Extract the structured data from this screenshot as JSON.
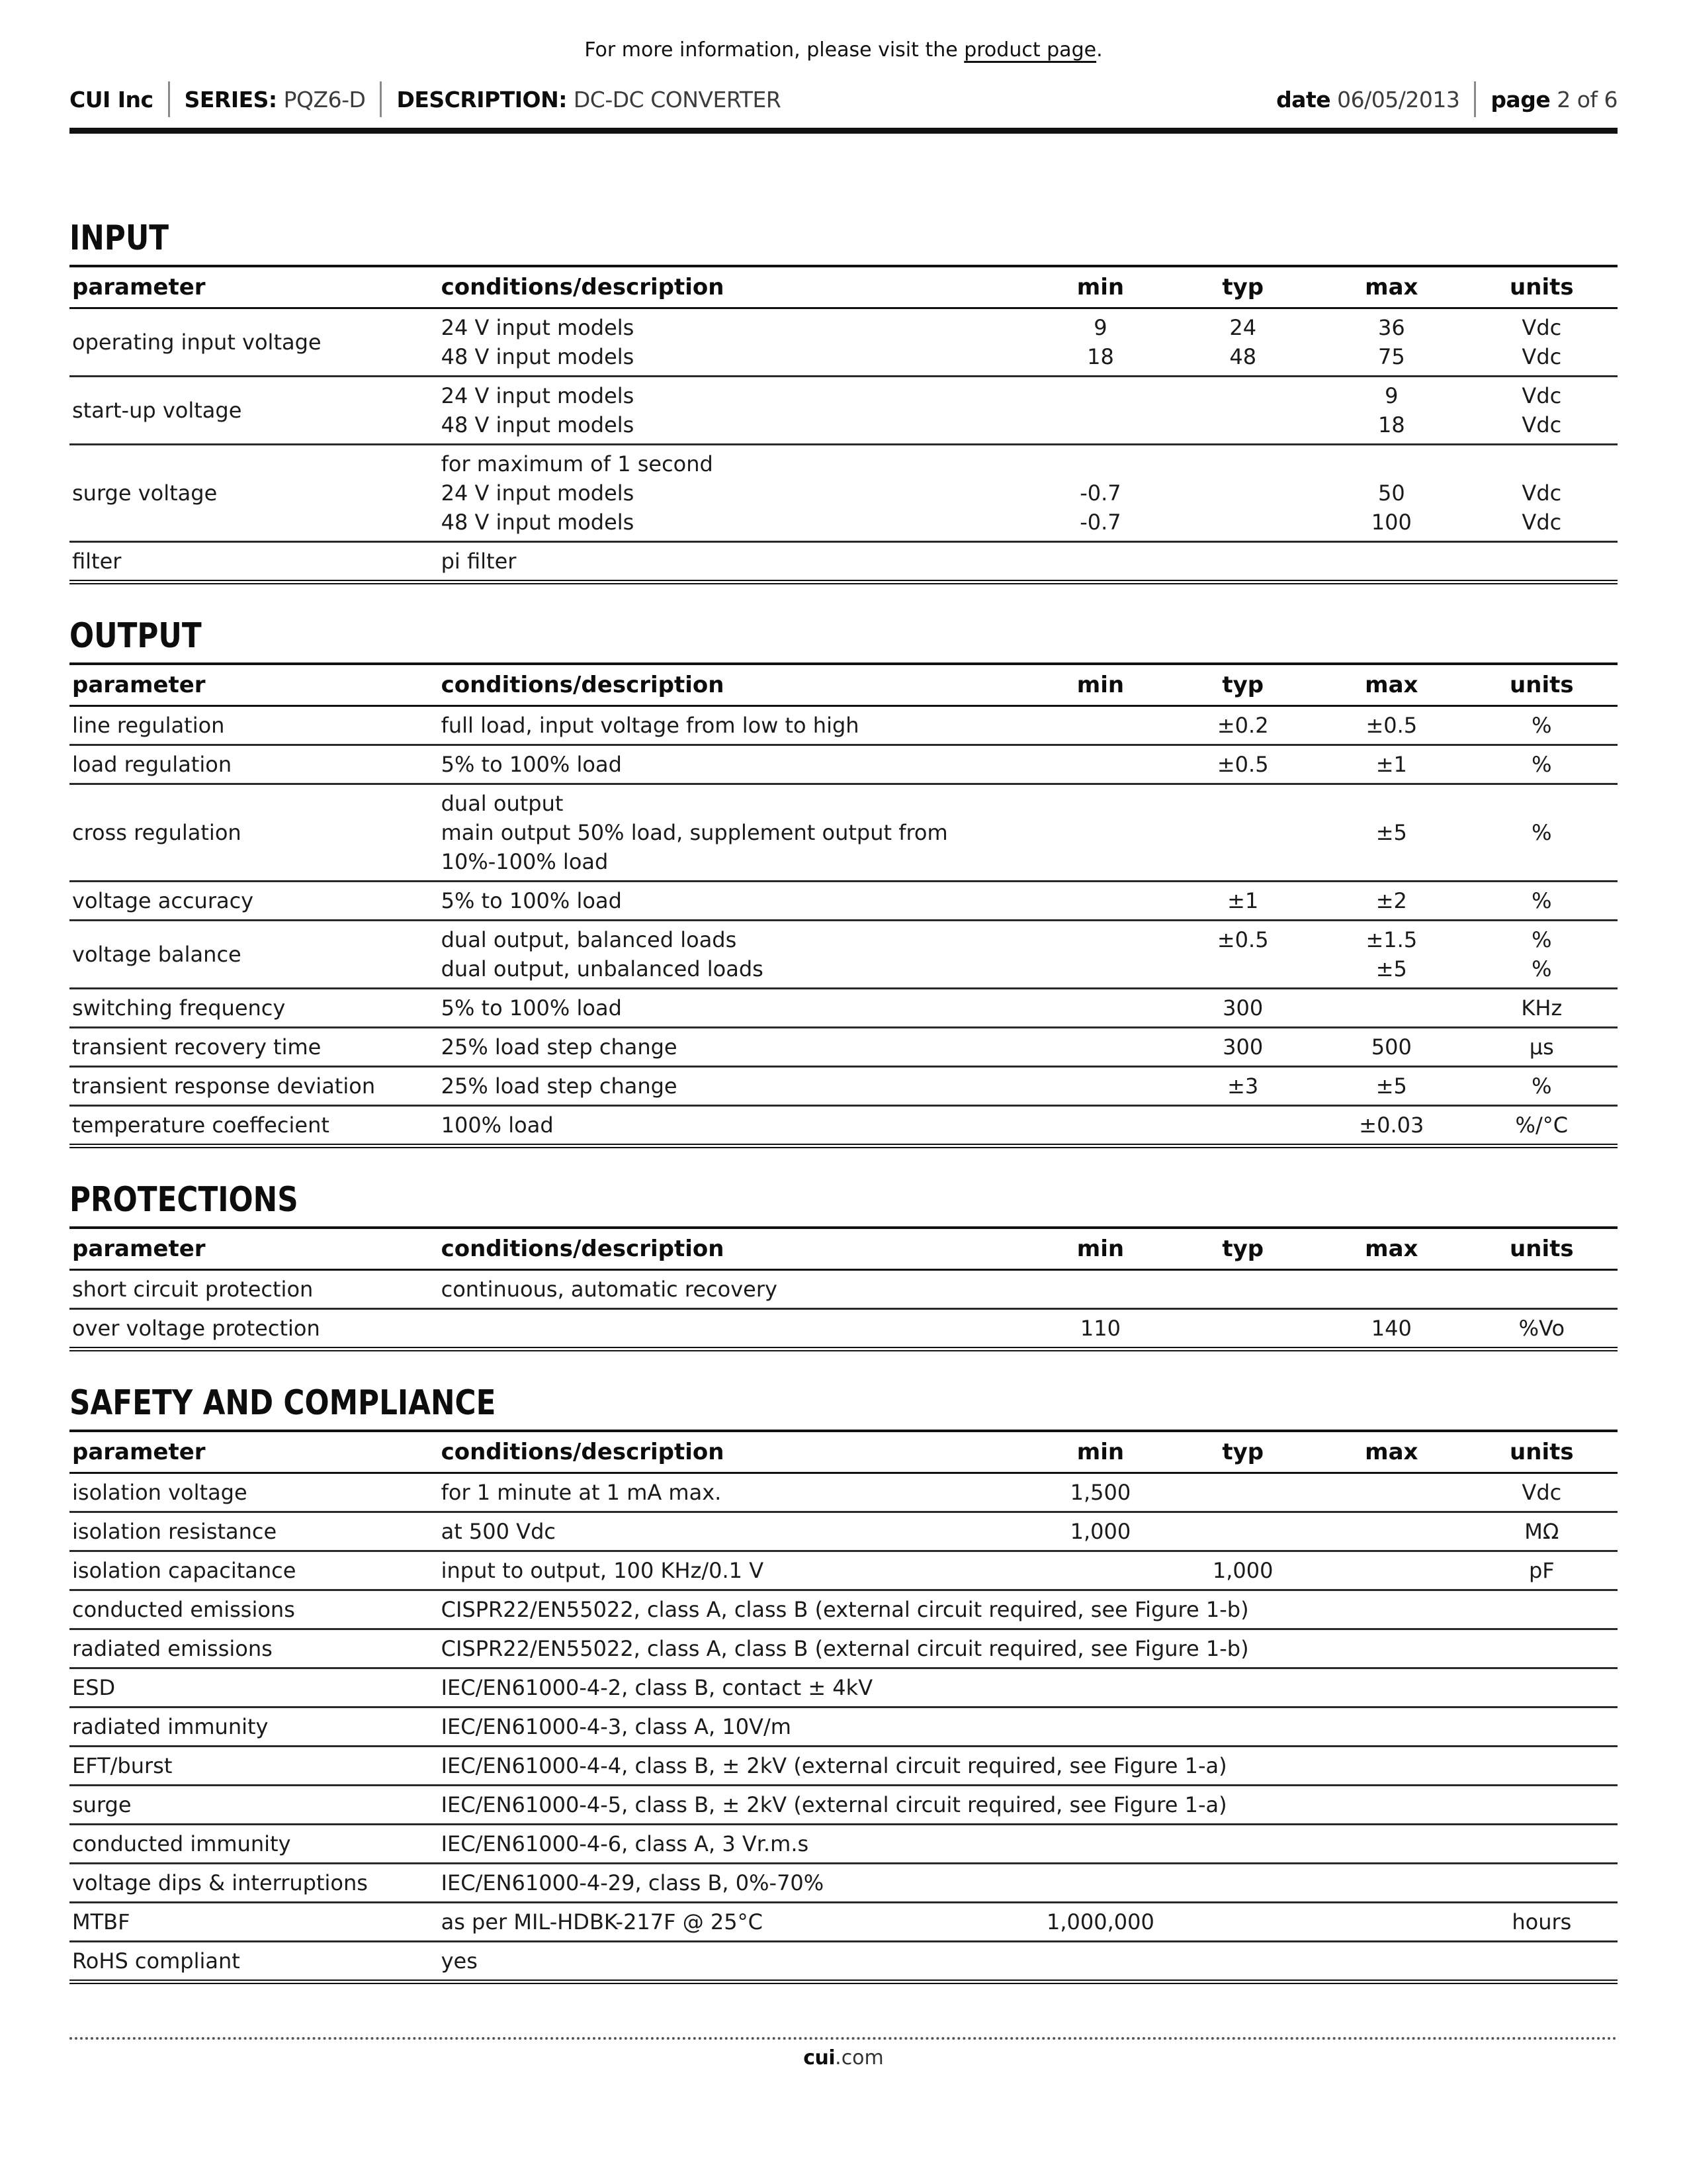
{
  "header": {
    "notice": {
      "pre": "For more information, please visit the ",
      "link": "product page",
      "post": "."
    },
    "company": "CUI Inc",
    "series_label": "SERIES:",
    "series": "PQZ6-D",
    "description_label": "DESCRIPTION:",
    "description": "DC-DC CONVERTER",
    "date_label": "date",
    "date": "06/05/2013",
    "page_label": "page",
    "page": "2 of 6"
  },
  "table_columns": [
    "parameter",
    "conditions/description",
    "min",
    "typ",
    "max",
    "units"
  ],
  "sections": [
    {
      "title": "INPUT",
      "rows": [
        {
          "parameter": "operating input voltage",
          "conditions": [
            "24 V input models",
            "48 V input models"
          ],
          "min": [
            "9",
            "18"
          ],
          "typ": [
            "24",
            "48"
          ],
          "max": [
            "36",
            "75"
          ],
          "units": [
            "Vdc",
            "Vdc"
          ]
        },
        {
          "parameter": "start-up voltage",
          "conditions": [
            "24 V input models",
            "48 V input models"
          ],
          "min": [],
          "typ": [],
          "max": [
            "9",
            "18"
          ],
          "units": [
            "Vdc",
            "Vdc"
          ]
        },
        {
          "parameter": "surge voltage",
          "conditions": [
            "for maximum of 1 second",
            "24 V input models",
            "48 V input models"
          ],
          "min": [
            "",
            "-0.7",
            "-0.7"
          ],
          "typ": [],
          "max": [
            "",
            "50",
            "100"
          ],
          "units": [
            "",
            "Vdc",
            "Vdc"
          ]
        },
        {
          "parameter": "filter",
          "conditions": [
            "pi filter"
          ],
          "min": [],
          "typ": [],
          "max": [],
          "units": []
        }
      ]
    },
    {
      "title": "OUTPUT",
      "rows": [
        {
          "parameter": "line regulation",
          "conditions": [
            "full load, input voltage from low to high"
          ],
          "min": [],
          "typ": [
            "±0.2"
          ],
          "max": [
            "±0.5"
          ],
          "units": [
            "%"
          ]
        },
        {
          "parameter": "load regulation",
          "conditions": [
            "5% to 100% load"
          ],
          "min": [],
          "typ": [
            "±0.5"
          ],
          "max": [
            "±1"
          ],
          "units": [
            "%"
          ]
        },
        {
          "parameter": "cross regulation",
          "conditions": [
            "dual output",
            "main output 50% load, supplement output from",
            "10%-100% load"
          ],
          "min": [],
          "typ": [],
          "max": [
            "",
            "±5",
            ""
          ],
          "units": [
            "",
            "%",
            ""
          ]
        },
        {
          "parameter": "voltage accuracy",
          "conditions": [
            "5% to 100% load"
          ],
          "min": [],
          "typ": [
            "±1"
          ],
          "max": [
            "±2"
          ],
          "units": [
            "%"
          ]
        },
        {
          "parameter": "voltage balance",
          "conditions": [
            "dual output, balanced loads",
            "dual output, unbalanced loads"
          ],
          "min": [],
          "typ": [
            "±0.5",
            ""
          ],
          "max": [
            "±1.5",
            "±5"
          ],
          "units": [
            "%",
            "%"
          ]
        },
        {
          "parameter": "switching frequency",
          "conditions": [
            "5% to 100% load"
          ],
          "min": [],
          "typ": [
            "300"
          ],
          "max": [],
          "units": [
            "KHz"
          ]
        },
        {
          "parameter": "transient recovery time",
          "conditions": [
            "25% load step change"
          ],
          "min": [],
          "typ": [
            "300"
          ],
          "max": [
            "500"
          ],
          "units": [
            "µs"
          ]
        },
        {
          "parameter": "transient response deviation",
          "conditions": [
            "25% load step change"
          ],
          "min": [],
          "typ": [
            "±3"
          ],
          "max": [
            "±5"
          ],
          "units": [
            "%"
          ]
        },
        {
          "parameter": "temperature coeffecient",
          "conditions": [
            "100% load"
          ],
          "min": [],
          "typ": [],
          "max": [
            "±0.03"
          ],
          "units": [
            "%/°C"
          ]
        }
      ]
    },
    {
      "title": "PROTECTIONS",
      "rows": [
        {
          "parameter": "short circuit protection",
          "conditions": [
            "continuous, automatic recovery"
          ],
          "min": [],
          "typ": [],
          "max": [],
          "units": []
        },
        {
          "parameter": "over voltage protection",
          "conditions": [],
          "min": [
            "110"
          ],
          "typ": [],
          "max": [
            "140"
          ],
          "units": [
            "%Vo"
          ]
        }
      ]
    },
    {
      "title": "SAFETY AND COMPLIANCE",
      "rows": [
        {
          "parameter": "isolation voltage",
          "conditions": [
            "for 1 minute at 1 mA max."
          ],
          "min": [
            "1,500"
          ],
          "typ": [],
          "max": [],
          "units": [
            "Vdc"
          ]
        },
        {
          "parameter": "isolation resistance",
          "conditions": [
            "at 500 Vdc"
          ],
          "min": [
            "1,000"
          ],
          "typ": [],
          "max": [],
          "units": [
            "MΩ"
          ]
        },
        {
          "parameter": "isolation capacitance",
          "conditions": [
            "input to output, 100 KHz/0.1 V"
          ],
          "min": [],
          "typ": [
            "1,000"
          ],
          "max": [],
          "units": [
            "pF"
          ]
        },
        {
          "parameter": "conducted emissions",
          "conditions": [
            "CISPR22/EN55022, class A, class B (external circuit required, see Figure 1-b)"
          ],
          "min": [],
          "typ": [],
          "max": [],
          "units": []
        },
        {
          "parameter": "radiated emissions",
          "conditions": [
            "CISPR22/EN55022, class A, class B (external circuit required, see Figure 1-b)"
          ],
          "min": [],
          "typ": [],
          "max": [],
          "units": []
        },
        {
          "parameter": "ESD",
          "conditions": [
            "IEC/EN61000-4-2, class B, contact ± 4kV"
          ],
          "min": [],
          "typ": [],
          "max": [],
          "units": []
        },
        {
          "parameter": "radiated immunity",
          "conditions": [
            "IEC/EN61000-4-3, class A, 10V/m"
          ],
          "min": [],
          "typ": [],
          "max": [],
          "units": []
        },
        {
          "parameter": "EFT/burst",
          "conditions": [
            "IEC/EN61000-4-4, class B, ± 2kV (external circuit required, see Figure 1-a)"
          ],
          "min": [],
          "typ": [],
          "max": [],
          "units": []
        },
        {
          "parameter": "surge",
          "conditions": [
            "IEC/EN61000-4-5, class B, ± 2kV (external circuit required, see Figure 1-a)"
          ],
          "min": [],
          "typ": [],
          "max": [],
          "units": []
        },
        {
          "parameter": "conducted immunity",
          "conditions": [
            "IEC/EN61000-4-6, class A, 3 Vr.m.s"
          ],
          "min": [],
          "typ": [],
          "max": [],
          "units": []
        },
        {
          "parameter": "voltage dips & interruptions",
          "conditions": [
            "IEC/EN61000-4-29, class B, 0%-70%"
          ],
          "min": [],
          "typ": [],
          "max": [],
          "units": []
        },
        {
          "parameter": "MTBF",
          "conditions": [
            "as per MIL-HDBK-217F @ 25°C"
          ],
          "min": [
            "1,000,000"
          ],
          "typ": [],
          "max": [],
          "units": [
            "hours"
          ]
        },
        {
          "parameter": "RoHS compliant",
          "conditions": [
            "yes"
          ],
          "min": [],
          "typ": [],
          "max": [],
          "units": []
        }
      ]
    }
  ],
  "footer": {
    "site_bold": "cui",
    "site_rest": ".com"
  }
}
